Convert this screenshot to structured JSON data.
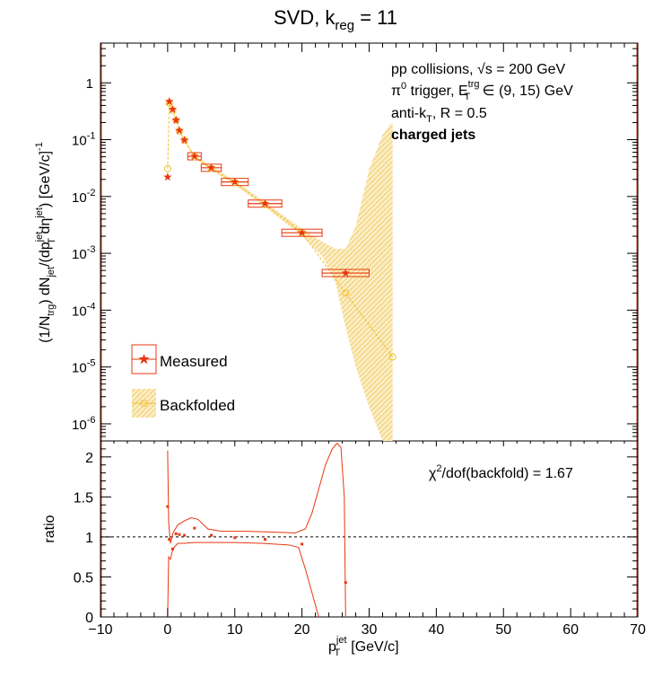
{
  "title": {
    "main": "SVD, k",
    "sub": "reg",
    "tail": " = 11"
  },
  "annotations": {
    "line1_main": "pp collisions, ",
    "line1_sqrt": "√s",
    "line1_tail": " = 200 GeV",
    "line2_pi": "π",
    "line2_pi_sup": "0",
    "line2_mid": " trigger, E",
    "line2_sup": "trg",
    "line2_sub": "T",
    "line2_tail": " ∈ (9, 15) GeV",
    "line3_main": "anti-k",
    "line3_sub": "T",
    "line3_tail": ", R = 0.5",
    "line4": "charged jets"
  },
  "legend": {
    "measured": "Measured",
    "backfolded": "Backfolded"
  },
  "chi2": {
    "chi": "χ",
    "sup": "2",
    "tail": "/dof(backfold) = 1.67"
  },
  "colors": {
    "measured": "#e8380f",
    "backfolded": "#f0c030",
    "band": "#f5d57a"
  },
  "chart_data": [
    {
      "type": "scatter",
      "panel": "top",
      "ylabel": "(1/N_trg) dN_jet/(dp_T^jet dη^jet) [GeV/c]^-1",
      "yscale": "log",
      "xlim": [
        -10,
        70
      ],
      "ylim": [
        5e-07,
        5
      ],
      "y_ticks": [
        "1",
        "10^-1",
        "10^-2",
        "10^-3",
        "10^-4",
        "10^-5",
        "10^-6"
      ],
      "series": [
        {
          "name": "Measured",
          "points": [
            {
              "x": 0.0,
              "y": 0.022,
              "xerr": 0.1
            },
            {
              "x": 0.25,
              "y": 0.47,
              "xerr": 0.25
            },
            {
              "x": 0.75,
              "y": 0.34,
              "xerr": 0.25
            },
            {
              "x": 1.25,
              "y": 0.22,
              "xerr": 0.25
            },
            {
              "x": 1.75,
              "y": 0.145,
              "xerr": 0.25
            },
            {
              "x": 2.5,
              "y": 0.098,
              "xerr": 0.5
            },
            {
              "x": 4.0,
              "y": 0.051,
              "xerr": 1.0
            },
            {
              "x": 6.5,
              "y": 0.032,
              "xerr": 1.5
            },
            {
              "x": 10.0,
              "y": 0.018,
              "xerr": 2.0
            },
            {
              "x": 14.5,
              "y": 0.0075,
              "xerr": 2.5
            },
            {
              "x": 20.0,
              "y": 0.0023,
              "xerr": 3.0
            },
            {
              "x": 26.5,
              "y": 0.00045,
              "xerr": 3.5
            }
          ]
        },
        {
          "name": "Backfolded",
          "points": [
            {
              "x": 0.0,
              "y": 0.031
            },
            {
              "x": 0.25,
              "y": 0.44
            },
            {
              "x": 0.75,
              "y": 0.33
            },
            {
              "x": 1.25,
              "y": 0.22
            },
            {
              "x": 1.75,
              "y": 0.14
            },
            {
              "x": 2.5,
              "y": 0.098
            },
            {
              "x": 4.0,
              "y": 0.05
            },
            {
              "x": 6.5,
              "y": 0.031
            },
            {
              "x": 10.0,
              "y": 0.0175
            },
            {
              "x": 14.5,
              "y": 0.0072
            },
            {
              "x": 20.0,
              "y": 0.0023
            },
            {
              "x": 26.5,
              "y": 0.0002
            },
            {
              "x": 33.5,
              "y": 1.5e-05
            }
          ]
        }
      ],
      "band": {
        "x": [
          0.0,
          0.25,
          0.75,
          1.25,
          1.75,
          2.5,
          4.0,
          6.5,
          10.0,
          14.5,
          20.0,
          23.0,
          25.0,
          26.5,
          28.0,
          30.0,
          32.0,
          33.0,
          33.5
        ],
        "y_low": [
          0.027,
          0.43,
          0.32,
          0.21,
          0.135,
          0.093,
          0.047,
          0.029,
          0.016,
          0.0066,
          0.002,
          0.0009,
          0.0003,
          5e-05,
          1e-05,
          2e-06,
          5e-07,
          5e-07,
          5e-07
        ],
        "y_high": [
          0.036,
          0.46,
          0.35,
          0.23,
          0.15,
          0.104,
          0.054,
          0.034,
          0.019,
          0.0079,
          0.0027,
          0.0016,
          0.0012,
          0.0012,
          0.003,
          0.03,
          0.12,
          0.18,
          0.2
        ]
      }
    },
    {
      "type": "line",
      "panel": "bottom",
      "xlabel": "p_T^jet [GeV/c]",
      "ylabel": "ratio",
      "xlim": [
        -10,
        70
      ],
      "ylim": [
        0,
        2.2
      ],
      "x_ticks": [
        "−10",
        "0",
        "10",
        "20",
        "30",
        "40",
        "50",
        "60",
        "70"
      ],
      "y_ticks": [
        "0",
        "0.5",
        "1",
        "1.5",
        "2"
      ],
      "reference_line": 1,
      "points": [
        {
          "x": 0.0,
          "y": 1.38
        },
        {
          "x": 0.25,
          "y": 0.97
        },
        {
          "x": 0.75,
          "y": 0.85
        },
        {
          "x": 1.25,
          "y": 1.04
        },
        {
          "x": 1.75,
          "y": 1.03
        },
        {
          "x": 2.5,
          "y": 1.02
        },
        {
          "x": 4.0,
          "y": 1.11
        },
        {
          "x": 6.5,
          "y": 1.02
        },
        {
          "x": 10.0,
          "y": 0.99
        },
        {
          "x": 14.5,
          "y": 0.97
        },
        {
          "x": 20.0,
          "y": 0.91
        },
        {
          "x": 26.5,
          "y": 0.43
        }
      ],
      "upper_curve": {
        "x": [
          0.0,
          0.15,
          0.4,
          0.8,
          1.5,
          2.5,
          3.5,
          4.5,
          6.0,
          8.0,
          12.0,
          16.0,
          19.0,
          20.5,
          21.5,
          22.5,
          23.5,
          24.5,
          25.2,
          25.8,
          26.3,
          26.5
        ],
        "y": [
          2.08,
          1.2,
          0.92,
          1.05,
          1.15,
          1.2,
          1.24,
          1.22,
          1.1,
          1.07,
          1.07,
          1.06,
          1.05,
          1.1,
          1.3,
          1.6,
          1.9,
          2.1,
          2.17,
          2.12,
          1.5,
          0.0
        ]
      },
      "lower_curve": {
        "x": [
          0.0,
          0.15,
          0.4,
          0.8,
          1.5,
          2.5,
          4.0,
          6.0,
          10.0,
          14.0,
          18.0,
          19.5,
          20.5,
          21.5,
          22.5
        ],
        "y": [
          0.0,
          0.75,
          0.72,
          0.85,
          0.92,
          0.92,
          0.93,
          0.93,
          0.93,
          0.92,
          0.9,
          0.87,
          0.6,
          0.3,
          0.0
        ]
      }
    }
  ]
}
